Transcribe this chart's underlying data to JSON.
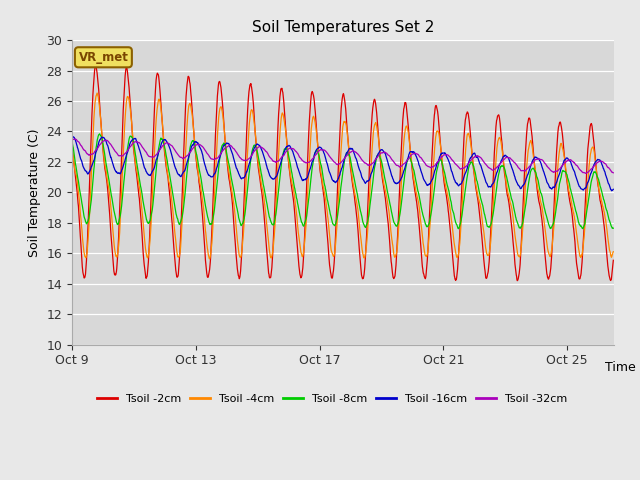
{
  "title": "Soil Temperatures Set 2",
  "ylabel": "Soil Temperature (C)",
  "xlabel": "Time",
  "ylim": [
    10,
    30
  ],
  "fig_bg_color": "#e8e8e8",
  "plot_bg_color": "#d8d8d8",
  "annotation_text": "VR_met",
  "annotation_fg": "#7a4500",
  "annotation_bg": "#f0e060",
  "annotation_border": "#8B6000",
  "x_tick_labels": [
    "Oct 9",
    "Oct 13",
    "Oct 17",
    "Oct 21",
    "Oct 25"
  ],
  "x_tick_days": [
    0,
    4,
    8,
    12,
    16
  ],
  "y_ticks": [
    10,
    12,
    14,
    16,
    18,
    20,
    22,
    24,
    26,
    28,
    30
  ],
  "total_days": 17.5,
  "series": [
    {
      "label": "Tsoil -2cm",
      "color": "#dd0000"
    },
    {
      "label": "Tsoil -4cm",
      "color": "#ff8800"
    },
    {
      "label": "Tsoil -8cm",
      "color": "#00cc00"
    },
    {
      "label": "Tsoil -16cm",
      "color": "#0000cc"
    },
    {
      "label": "Tsoil -32cm",
      "color": "#aa00bb"
    }
  ]
}
